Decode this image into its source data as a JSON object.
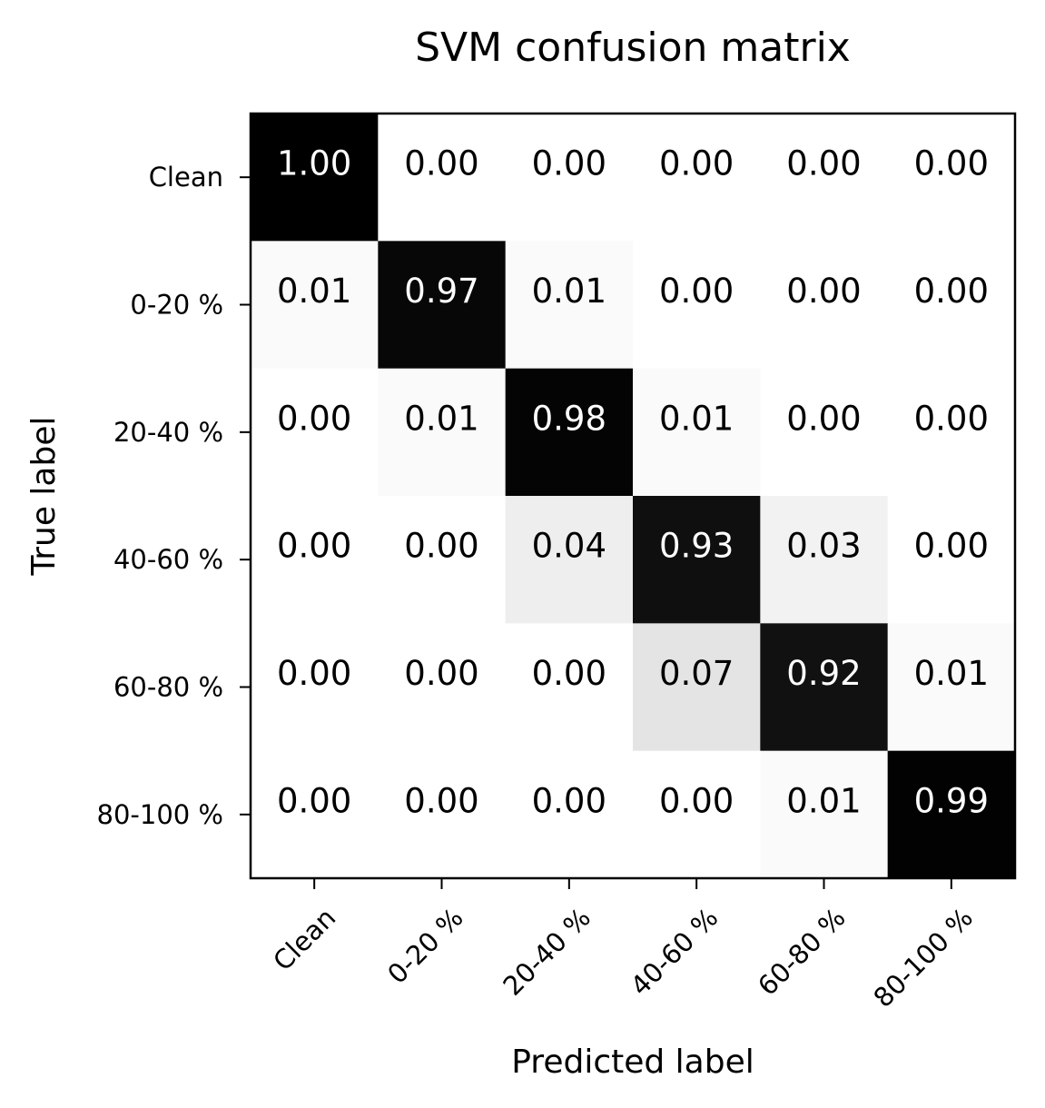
{
  "chart_data": {
    "type": "heatmap",
    "title": "SVM confusion matrix",
    "xlabel": "Predicted label",
    "ylabel": "True label",
    "x_categories": [
      "Clean",
      "0-20 %",
      "20-40 %",
      "40-60 %",
      "60-80 %",
      "80-100 %"
    ],
    "y_categories": [
      "Clean",
      "0-20 %",
      "20-40 %",
      "40-60 %",
      "60-80 %",
      "80-100 %"
    ],
    "matrix": [
      [
        1.0,
        0.0,
        0.0,
        0.0,
        0.0,
        0.0
      ],
      [
        0.01,
        0.97,
        0.01,
        0.0,
        0.0,
        0.0
      ],
      [
        0.0,
        0.01,
        0.98,
        0.01,
        0.0,
        0.0
      ],
      [
        0.0,
        0.0,
        0.04,
        0.93,
        0.03,
        0.0
      ],
      [
        0.0,
        0.0,
        0.0,
        0.07,
        0.92,
        0.01
      ],
      [
        0.0,
        0.0,
        0.0,
        0.0,
        0.01,
        0.99
      ]
    ],
    "value_range": [
      0,
      1
    ],
    "colormap": "white-to-black",
    "grid": false,
    "x_tick_rotation": "45 degrees"
  }
}
